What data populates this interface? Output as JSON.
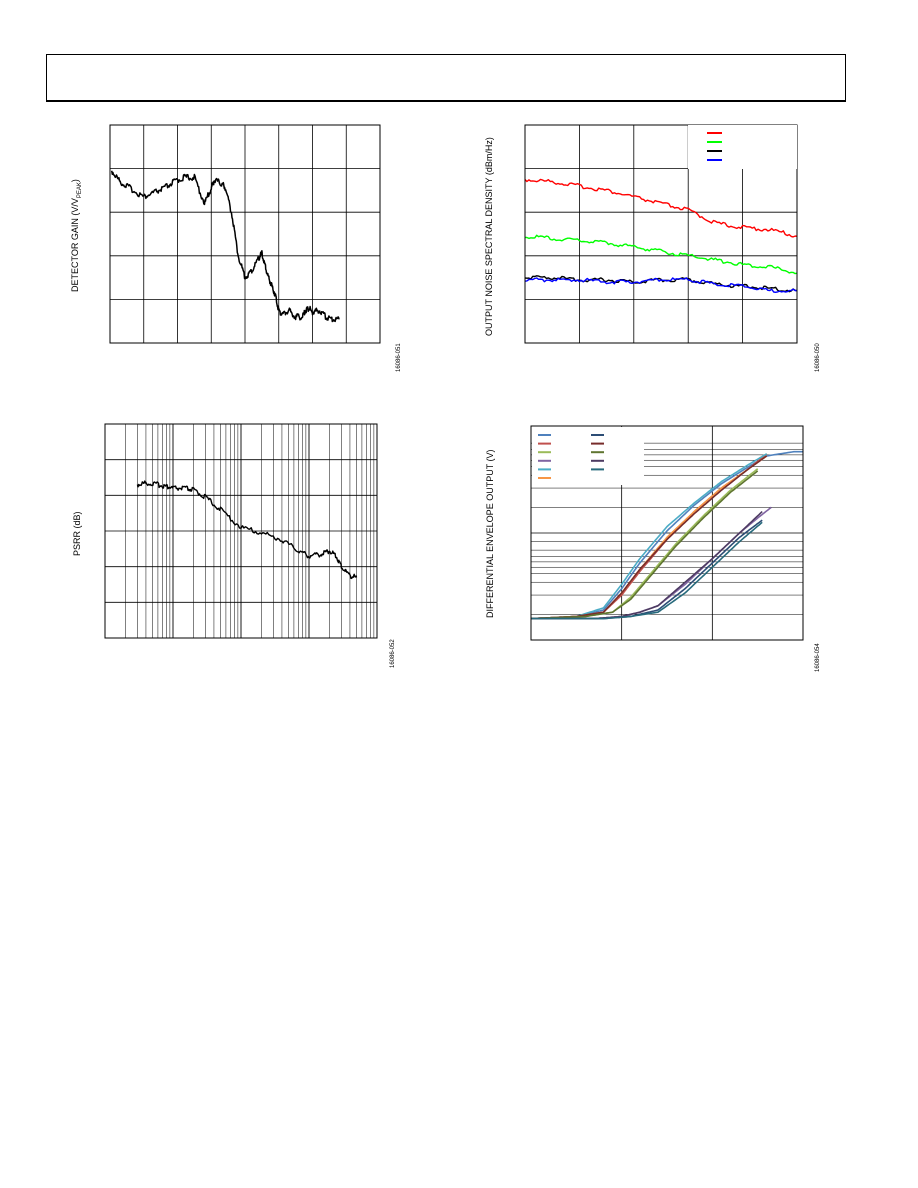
{
  "page": {},
  "figures": [
    {
      "id": "detector-gain",
      "ylabel_main": "DETECTOR GAIN (V/V",
      "ylabel_sub": "PEAK",
      "ylabel_end": ")",
      "figure_id": "16086-051"
    },
    {
      "id": "output-noise",
      "ylabel": "OUTPUT NOISE SPECTRAL DENSITY (dBm/Hz)",
      "figure_id": "16086-050"
    },
    {
      "id": "psrr",
      "ylabel": "PSRR (dB)",
      "figure_id": "16086-052"
    },
    {
      "id": "envelope-output",
      "ylabel": "DIFFERENTIAL ENVELOPE OUTPUT (V)",
      "figure_id": "16086-054"
    }
  ],
  "chart_data": [
    {
      "type": "line",
      "grid": true,
      "xlim": [
        0,
        8
      ],
      "ylim": [
        0,
        5
      ],
      "series": [
        {
          "color": "#000000",
          "x": [
            0.05,
            0.3,
            0.6,
            1.0,
            1.3,
            1.6,
            1.9,
            2.2,
            2.5,
            2.8,
            3.0,
            3.1,
            3.3,
            3.4,
            3.6,
            3.8,
            4.0,
            4.2,
            4.4,
            4.5,
            4.6,
            4.7,
            4.8,
            4.9,
            5.0,
            5.1,
            5.3,
            5.5,
            5.7,
            5.8,
            5.9,
            6.0,
            6.2,
            6.4,
            6.6,
            6.8
          ],
          "y": [
            3.95,
            3.7,
            3.55,
            3.35,
            3.45,
            3.55,
            3.7,
            3.8,
            3.8,
            3.2,
            3.55,
            3.75,
            3.65,
            3.6,
            3.0,
            2.0,
            1.5,
            1.65,
            1.95,
            2.05,
            1.75,
            1.5,
            1.3,
            1.1,
            0.75,
            0.65,
            0.75,
            0.6,
            0.6,
            0.75,
            0.8,
            0.7,
            0.75,
            0.6,
            0.55,
            0.55
          ]
        }
      ]
    },
    {
      "type": "line",
      "grid": true,
      "legend": "top-right",
      "xlim": [
        0,
        5
      ],
      "ylim": [
        0,
        5
      ],
      "series": [
        {
          "color": "#ff0000",
          "x": [
            0,
            0.5,
            1.0,
            1.5,
            2.0,
            2.5,
            3.0,
            3.5,
            4.0,
            4.5,
            5.0
          ],
          "y": [
            3.75,
            3.7,
            3.6,
            3.5,
            3.35,
            3.2,
            3.05,
            2.75,
            2.65,
            2.6,
            2.45
          ]
        },
        {
          "color": "#00ff00",
          "x": [
            0,
            0.5,
            1.0,
            1.5,
            2.0,
            2.5,
            3.0,
            3.5,
            4.0,
            4.5,
            5.0
          ],
          "y": [
            2.45,
            2.4,
            2.35,
            2.3,
            2.2,
            2.1,
            2.0,
            1.9,
            1.8,
            1.75,
            1.6
          ]
        },
        {
          "color": "#000000",
          "x": [
            0,
            0.5,
            1.0,
            1.5,
            2.0,
            2.5,
            3.0,
            3.5,
            4.0,
            4.5,
            5.0
          ],
          "y": [
            1.5,
            1.5,
            1.45,
            1.45,
            1.4,
            1.45,
            1.45,
            1.35,
            1.3,
            1.25,
            1.2
          ]
        },
        {
          "color": "#0000ff",
          "x": [
            0,
            0.5,
            1.0,
            1.5,
            2.0,
            2.5,
            3.0,
            3.5,
            4.0,
            4.5,
            5.0
          ],
          "y": [
            1.45,
            1.45,
            1.45,
            1.4,
            1.4,
            1.45,
            1.45,
            1.35,
            1.3,
            1.2,
            1.2
          ]
        }
      ]
    },
    {
      "type": "line",
      "grid": true,
      "xscale": "log",
      "xlim": [
        1000,
        10000000
      ],
      "ylim": [
        0,
        6
      ],
      "series": [
        {
          "color": "#000000",
          "x": [
            3000,
            4000,
            6000,
            8000,
            10000,
            15000,
            20000,
            30000,
            50000,
            100000,
            200000,
            400000,
            700000,
            1000000,
            1500000,
            2000000,
            2500000,
            3000000,
            4000000,
            5000000
          ],
          "y": [
            4.3,
            4.35,
            4.3,
            4.25,
            4.2,
            4.2,
            4.15,
            3.95,
            3.6,
            3.1,
            2.95,
            2.75,
            2.45,
            2.3,
            2.35,
            2.45,
            2.3,
            2.0,
            1.75,
            1.7
          ]
        }
      ]
    },
    {
      "type": "line",
      "grid": true,
      "legend": "top-left",
      "xlim": [
        0,
        3
      ],
      "ylim": [
        0,
        1
      ],
      "series": [
        {
          "color": "#4f81bd",
          "x": [
            0,
            0.5,
            0.8,
            1.0,
            1.2,
            1.5,
            1.8,
            2.1,
            2.4,
            2.6,
            2.9,
            3.0
          ],
          "y": [
            0.1,
            0.11,
            0.14,
            0.24,
            0.36,
            0.51,
            0.63,
            0.73,
            0.81,
            0.86,
            0.88,
            0.88
          ]
        },
        {
          "color": "#c0504d",
          "x": [
            0,
            0.5,
            0.8,
            1.0,
            1.2,
            1.5,
            1.8,
            2.1,
            2.4,
            2.6
          ],
          "y": [
            0.1,
            0.11,
            0.13,
            0.21,
            0.32,
            0.47,
            0.6,
            0.71,
            0.8,
            0.87
          ]
        },
        {
          "color": "#9bbb59",
          "x": [
            0,
            0.6,
            0.9,
            1.1,
            1.3,
            1.6,
            1.9,
            2.2,
            2.5
          ],
          "y": [
            0.1,
            0.11,
            0.13,
            0.2,
            0.3,
            0.45,
            0.58,
            0.7,
            0.8
          ]
        },
        {
          "color": "#8064a2",
          "x": [
            0,
            0.7,
            1.0,
            1.2,
            1.4,
            1.7,
            2.0,
            2.3,
            2.5,
            2.65
          ],
          "y": [
            0.1,
            0.1,
            0.11,
            0.13,
            0.16,
            0.26,
            0.38,
            0.5,
            0.57,
            0.62
          ]
        },
        {
          "color": "#4bacc6",
          "x": [
            0,
            0.5,
            0.8,
            1.0,
            1.2,
            1.5,
            1.8,
            2.1,
            2.4,
            2.6
          ],
          "y": [
            0.1,
            0.11,
            0.15,
            0.26,
            0.38,
            0.53,
            0.64,
            0.74,
            0.82,
            0.87
          ]
        },
        {
          "color": "#f79646",
          "x": [
            0,
            0.5,
            0.8,
            1.0,
            1.2,
            1.5,
            1.8,
            2.1,
            2.4,
            2.6
          ],
          "y": [
            0.1,
            0.11,
            0.13,
            0.22,
            0.33,
            0.48,
            0.6,
            0.71,
            0.8,
            0.86
          ]
        },
        {
          "color": "#2c4d75",
          "x": [
            0,
            0.8,
            1.1,
            1.4,
            1.7,
            2.0,
            2.3,
            2.55
          ],
          "y": [
            0.1,
            0.1,
            0.11,
            0.14,
            0.24,
            0.36,
            0.48,
            0.56
          ]
        },
        {
          "color": "#772c2a",
          "x": [
            0,
            0.5,
            0.8,
            1.0,
            1.2,
            1.5,
            1.8,
            2.1,
            2.4,
            2.6
          ],
          "y": [
            0.1,
            0.11,
            0.13,
            0.22,
            0.33,
            0.47,
            0.59,
            0.7,
            0.8,
            0.86
          ]
        },
        {
          "color": "#5f7530",
          "x": [
            0,
            0.6,
            0.9,
            1.1,
            1.3,
            1.6,
            1.9,
            2.2,
            2.5
          ],
          "y": [
            0.1,
            0.11,
            0.13,
            0.19,
            0.29,
            0.44,
            0.57,
            0.69,
            0.79
          ]
        },
        {
          "color": "#4d3b62",
          "x": [
            0,
            0.7,
            1.0,
            1.2,
            1.4,
            1.7,
            2.0,
            2.3,
            2.55
          ],
          "y": [
            0.1,
            0.1,
            0.11,
            0.13,
            0.16,
            0.27,
            0.38,
            0.5,
            0.6
          ]
        },
        {
          "color": "#276a7c",
          "x": [
            0,
            0.8,
            1.1,
            1.4,
            1.7,
            2.0,
            2.3,
            2.55
          ],
          "y": [
            0.1,
            0.1,
            0.11,
            0.13,
            0.22,
            0.34,
            0.46,
            0.55
          ]
        }
      ]
    }
  ]
}
